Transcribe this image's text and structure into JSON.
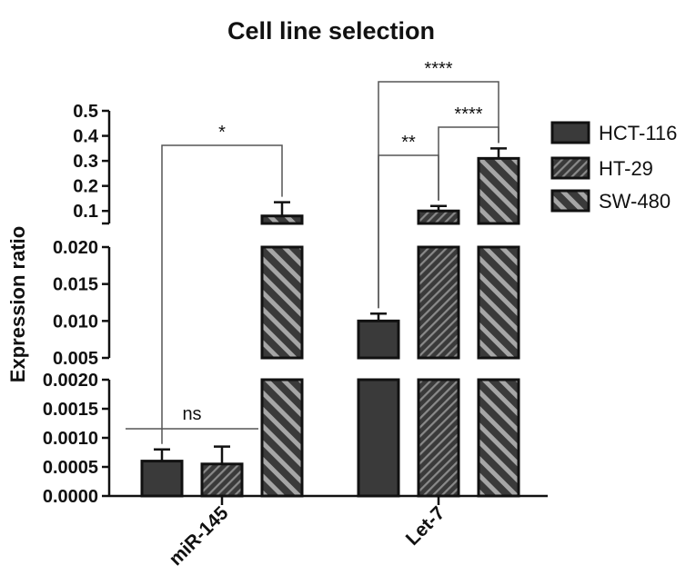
{
  "chart_data": {
    "type": "bar",
    "title": "Cell line selection",
    "ylabel": "Expression ratio",
    "xlabel": "",
    "categories": [
      "miR-145",
      "Let-7"
    ],
    "series": [
      {
        "name": "HCT-116",
        "pattern": "solid",
        "values": [
          0.0006,
          0.01
        ],
        "errors": [
          0.0002,
          0.001
        ]
      },
      {
        "name": "HT-29",
        "pattern": "dense-hatch",
        "values": [
          0.00055,
          0.1
        ],
        "errors": [
          0.0003,
          0.02
        ]
      },
      {
        "name": "SW-480",
        "pattern": "wide-hatch",
        "values": [
          0.08,
          0.31
        ],
        "errors": [
          0.055,
          0.04
        ]
      }
    ],
    "y_segments": [
      {
        "range": [
          0,
          0.002
        ],
        "ticks": [
          0.0,
          0.0005,
          0.001,
          0.0015,
          0.002
        ],
        "tick_labels": [
          "0.0000",
          "0.0005",
          "0.0010",
          "0.0015",
          "0.0020"
        ]
      },
      {
        "range": [
          0.005,
          0.02
        ],
        "ticks": [
          0.005,
          0.01,
          0.015,
          0.02
        ],
        "tick_labels": [
          "0.005",
          "0.010",
          "0.015",
          "0.020"
        ]
      },
      {
        "range": [
          0.05,
          0.5
        ],
        "ticks": [
          0.1,
          0.2,
          0.3,
          0.4,
          0.5
        ],
        "tick_labels": [
          "0.1",
          "0.2",
          "0.3",
          "0.4",
          "0.5"
        ]
      }
    ],
    "significance": [
      {
        "label": "ns",
        "category": "miR-145",
        "from": "HCT-116",
        "to": "HT-29"
      },
      {
        "label": "*",
        "category": "miR-145",
        "from": "HCT-116",
        "to": "SW-480"
      },
      {
        "label": "**",
        "category": "Let-7",
        "from": "HCT-116",
        "to": "HT-29"
      },
      {
        "label": "****",
        "category": "Let-7",
        "from": "HT-29",
        "to": "SW-480"
      },
      {
        "label": "****",
        "category": "Let-7",
        "from": "HCT-116",
        "to": "SW-480"
      }
    ],
    "legend_position": "top-right"
  },
  "colors": {
    "bar_fill": "#3a3a3a",
    "hatch_light": "#9a9a9a",
    "hatch_dense_light": "#8a8a8a",
    "outline": "#111111"
  }
}
